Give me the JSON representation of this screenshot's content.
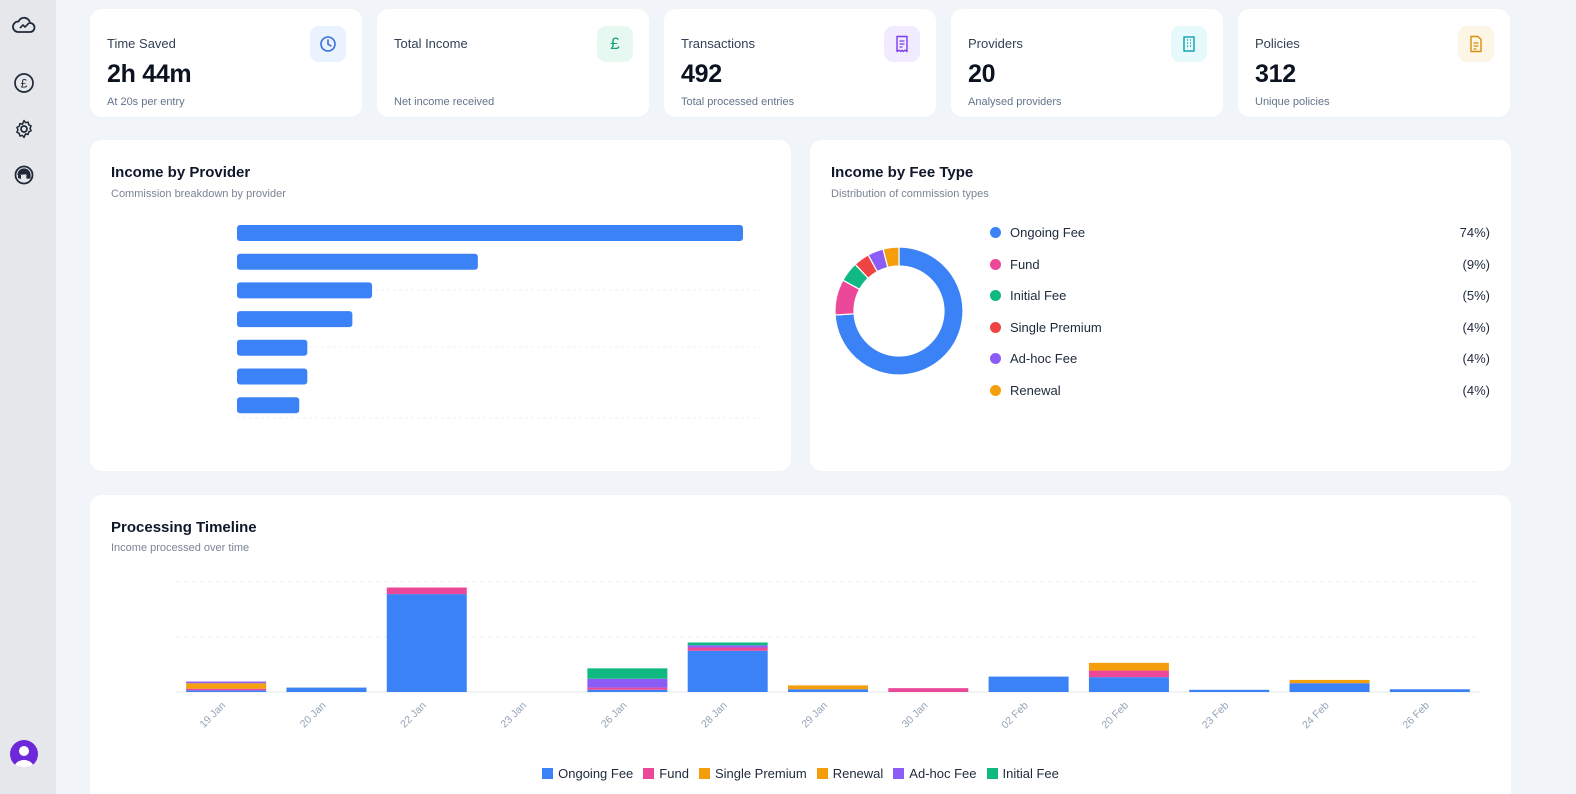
{
  "colors": {
    "blue": "#3b82f6",
    "pink": "#ec4899",
    "green": "#10b981",
    "red": "#ef4444",
    "purple": "#8b5cf6",
    "orange": "#f59e0b"
  },
  "sidebar": {
    "icons": [
      "cloud-icon",
      "pound-icon",
      "gear-icon",
      "support-icon"
    ]
  },
  "stats": [
    {
      "title": "Time Saved",
      "value": "2h 44m",
      "sub": "At 20s per entry",
      "icon": "clock-icon"
    },
    {
      "title": "Total Income",
      "value": "",
      "sub": "Net income received",
      "icon": "pound-icon"
    },
    {
      "title": "Transactions",
      "value": "492",
      "sub": "Total processed entries",
      "icon": "receipt-icon"
    },
    {
      "title": "Providers",
      "value": "20",
      "sub": "Analysed providers",
      "icon": "building-icon"
    },
    {
      "title": "Policies",
      "value": "312",
      "sub": "Unique policies",
      "icon": "document-icon"
    }
  ],
  "provider_panel": {
    "title": "Income by Provider",
    "subtitle": "Commission breakdown by provider"
  },
  "fee_panel": {
    "title": "Income by Fee Type",
    "subtitle": "Distribution of commission types"
  },
  "timeline_panel": {
    "title": "Processing Timeline",
    "subtitle": "Income processed over time"
  },
  "chart_data": [
    {
      "type": "bar",
      "orientation": "horizontal",
      "title": "Income by Provider",
      "categories": [
        "",
        "",
        "",
        "",
        "",
        "",
        ""
      ],
      "values": [
        100,
        47.6,
        26.7,
        22.8,
        13.9,
        13.9,
        12.3
      ]
    },
    {
      "type": "pie",
      "variant": "donut",
      "title": "Income by Fee Type",
      "labels": [
        "Ongoing Fee",
        "Fund",
        "Initial Fee",
        "Single Premium",
        "Ad-hoc Fee",
        "Renewal"
      ],
      "values": [
        74,
        9,
        5,
        4,
        4,
        4
      ],
      "pct_labels": [
        "74%)",
        "(9%)",
        "(5%)",
        "(4%)",
        "(4%)",
        "(4%)"
      ],
      "colors": [
        "#3b82f6",
        "#ec4899",
        "#10b981",
        "#ef4444",
        "#8b5cf6",
        "#f59e0b"
      ]
    },
    {
      "type": "bar",
      "stacked": true,
      "title": "Processing Timeline",
      "categories": [
        "19 Jan",
        "20 Jan",
        "22 Jan",
        "23 Jan",
        "26 Jan",
        "28 Jan",
        "29 Jan",
        "30 Jan",
        "02 Feb",
        "20 Feb",
        "23 Feb",
        "24 Feb",
        "26 Feb"
      ],
      "ylim": [
        0,
        20
      ],
      "series": [
        {
          "name": "Ongoing Fee",
          "color": "#3b82f6",
          "values": [
            0.3,
            0.8,
            17.8,
            0,
            0.4,
            7.5,
            0.5,
            0,
            2.8,
            2.7,
            0.4,
            1.6,
            0.5
          ]
        },
        {
          "name": "Fund",
          "color": "#ec4899",
          "values": [
            0.3,
            0,
            1.2,
            0,
            0.4,
            0.6,
            0,
            0.7,
            0,
            1.2,
            0,
            0,
            0
          ]
        },
        {
          "name": "Single Premium",
          "color": "#f59e0b",
          "values": [
            0.5,
            0,
            0,
            0,
            0,
            0,
            0,
            0,
            0,
            0,
            0,
            0,
            0
          ]
        },
        {
          "name": "Renewal",
          "color": "#f59e0b",
          "values": [
            0.5,
            0,
            0,
            0,
            0,
            0,
            0.7,
            0,
            0,
            1.4,
            0,
            0.6,
            0
          ]
        },
        {
          "name": "Ad-hoc Fee",
          "color": "#8b5cf6",
          "values": [
            0.3,
            0,
            0,
            0,
            1.6,
            0.4,
            0,
            0,
            0,
            0,
            0,
            0,
            0
          ]
        },
        {
          "name": "Initial Fee",
          "color": "#10b981",
          "values": [
            0,
            0,
            0,
            0,
            1.9,
            0.5,
            0,
            0,
            0,
            0,
            0,
            0,
            0
          ]
        }
      ]
    }
  ]
}
